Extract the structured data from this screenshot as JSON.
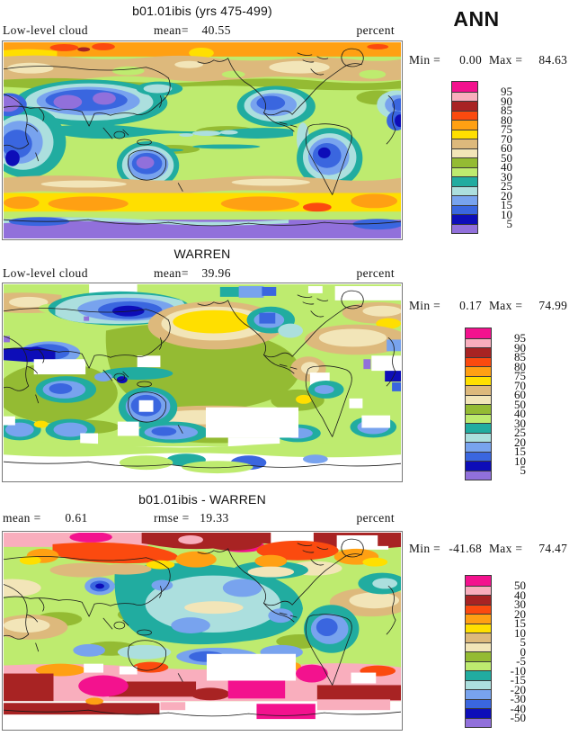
{
  "figure": {
    "season": "ANN"
  },
  "palette": {
    "magenta": "#F3128E",
    "pink": "#F9AEBD",
    "darkred": "#A82323",
    "orangered": "#FB4A0F",
    "orange": "#FFA013",
    "yellow": "#FFDF00",
    "tan": "#DDB97C",
    "beige": "#F2E5B8",
    "olive": "#94BB33",
    "lime": "#BEEB6F",
    "teal": "#21ACA0",
    "palecyan": "#ACDFDE",
    "cornflower": "#78A3EE",
    "blue": "#3A66DF",
    "navy": "#0D0DB8",
    "purple": "#9170DB",
    "missing": "#FFFFFF",
    "coast": "#1A1A1A"
  },
  "panels": [
    {
      "title": "b01.01ibis (yrs 475-499)",
      "left_label": "Low-level cloud",
      "mean_label": "mean=",
      "mean_value": "40.55",
      "units": "percent",
      "min_label": "Min =",
      "min_value": "0.00",
      "max_label": "Max =",
      "max_value": "84.63",
      "colorbar": {
        "tick_labels": [
          "95",
          "90",
          "85",
          "80",
          "75",
          "70",
          "60",
          "50",
          "40",
          "30",
          "25",
          "20",
          "15",
          "10",
          "5"
        ],
        "cell_colors": [
          "magenta",
          "pink",
          "darkred",
          "orangered",
          "orange",
          "yellow",
          "tan",
          "beige",
          "olive",
          "lime",
          "teal",
          "palecyan",
          "cornflower",
          "blue",
          "navy",
          "purple"
        ]
      }
    },
    {
      "title": "WARREN",
      "left_label": "Low-level cloud",
      "mean_label": "mean=",
      "mean_value": "39.96",
      "units": "percent",
      "min_label": "Min =",
      "min_value": "0.17",
      "max_label": "Max =",
      "max_value": "74.99",
      "colorbar": {
        "tick_labels": [
          "95",
          "90",
          "85",
          "80",
          "75",
          "70",
          "60",
          "50",
          "40",
          "30",
          "25",
          "20",
          "15",
          "10",
          "5"
        ],
        "cell_colors": [
          "magenta",
          "pink",
          "darkred",
          "orangered",
          "orange",
          "yellow",
          "tan",
          "beige",
          "olive",
          "lime",
          "teal",
          "palecyan",
          "cornflower",
          "blue",
          "navy",
          "purple"
        ]
      }
    },
    {
      "title": "b01.01ibis - WARREN",
      "mean_label": "mean =",
      "mean_value": "0.61",
      "rmse_label": "rmse =",
      "rmse_value": "19.33",
      "units": "percent",
      "min_label": "Min =",
      "min_value": "-41.68",
      "max_label": "Max =",
      "max_value": "74.47",
      "colorbar": {
        "tick_labels": [
          "50",
          "40",
          "30",
          "20",
          "15",
          "10",
          "5",
          "0",
          "-5",
          "-10",
          "-15",
          "-20",
          "-30",
          "-40",
          "-50"
        ],
        "cell_colors": [
          "magenta",
          "pink",
          "darkred",
          "orangered",
          "orange",
          "yellow",
          "tan",
          "beige",
          "olive",
          "lime",
          "teal",
          "palecyan",
          "cornflower",
          "blue",
          "navy",
          "purple"
        ]
      }
    }
  ],
  "chart_data": [
    {
      "type": "heatmap",
      "kind": "global filled-contour map, Pacific-centered lat-lon",
      "season": "ANN",
      "title": "b01.01ibis (yrs 475-499)",
      "variable": "Low-level cloud",
      "units": "percent",
      "mean": 40.55,
      "min": 0.0,
      "max": 84.63,
      "contour_levels": [
        5,
        10,
        15,
        20,
        25,
        30,
        40,
        50,
        60,
        70,
        75,
        80,
        85,
        90,
        95
      ],
      "level_colors_low_to_high": [
        "#9170DB",
        "#0D0DB8",
        "#3A66DF",
        "#78A3EE",
        "#ACDFDE",
        "#21ACA0",
        "#BEEB6F",
        "#94BB33",
        "#F2E5B8",
        "#DDB97C",
        "#FFDF00",
        "#FFA013",
        "#FB4A0F",
        "#A82323",
        "#F9AEBD",
        "#F3128E"
      ],
      "legend_position": "right"
    },
    {
      "type": "heatmap",
      "kind": "global filled-contour map, Pacific-centered lat-lon",
      "season": "ANN",
      "title": "WARREN",
      "variable": "Low-level cloud",
      "units": "percent",
      "mean": 39.96,
      "min": 0.17,
      "max": 74.99,
      "contour_levels": [
        5,
        10,
        15,
        20,
        25,
        30,
        40,
        50,
        60,
        70,
        75,
        80,
        85,
        90,
        95
      ],
      "level_colors_low_to_high": [
        "#9170DB",
        "#0D0DB8",
        "#3A66DF",
        "#78A3EE",
        "#ACDFDE",
        "#21ACA0",
        "#BEEB6F",
        "#94BB33",
        "#F2E5B8",
        "#DDB97C",
        "#FFDF00",
        "#FFA013",
        "#FB4A0F",
        "#A82323",
        "#F9AEBD",
        "#F3128E"
      ],
      "note": "white cells = missing observational data",
      "legend_position": "right"
    },
    {
      "type": "heatmap",
      "kind": "global filled-contour difference map, Pacific-centered lat-lon",
      "season": "ANN",
      "title": "b01.01ibis - WARREN",
      "variable": "Low-level cloud difference",
      "units": "percent",
      "mean": 0.61,
      "rmse": 19.33,
      "min": -41.68,
      "max": 74.47,
      "contour_levels": [
        -50,
        -40,
        -30,
        -20,
        -15,
        -10,
        -5,
        0,
        5,
        10,
        15,
        20,
        30,
        40,
        50
      ],
      "level_colors_low_to_high": [
        "#9170DB",
        "#0D0DB8",
        "#3A66DF",
        "#78A3EE",
        "#ACDFDE",
        "#21ACA0",
        "#BEEB6F",
        "#94BB33",
        "#F2E5B8",
        "#DDB97C",
        "#FFDF00",
        "#FFA013",
        "#FB4A0F",
        "#A82323",
        "#F9AEBD",
        "#F3128E"
      ],
      "legend_position": "right"
    }
  ]
}
